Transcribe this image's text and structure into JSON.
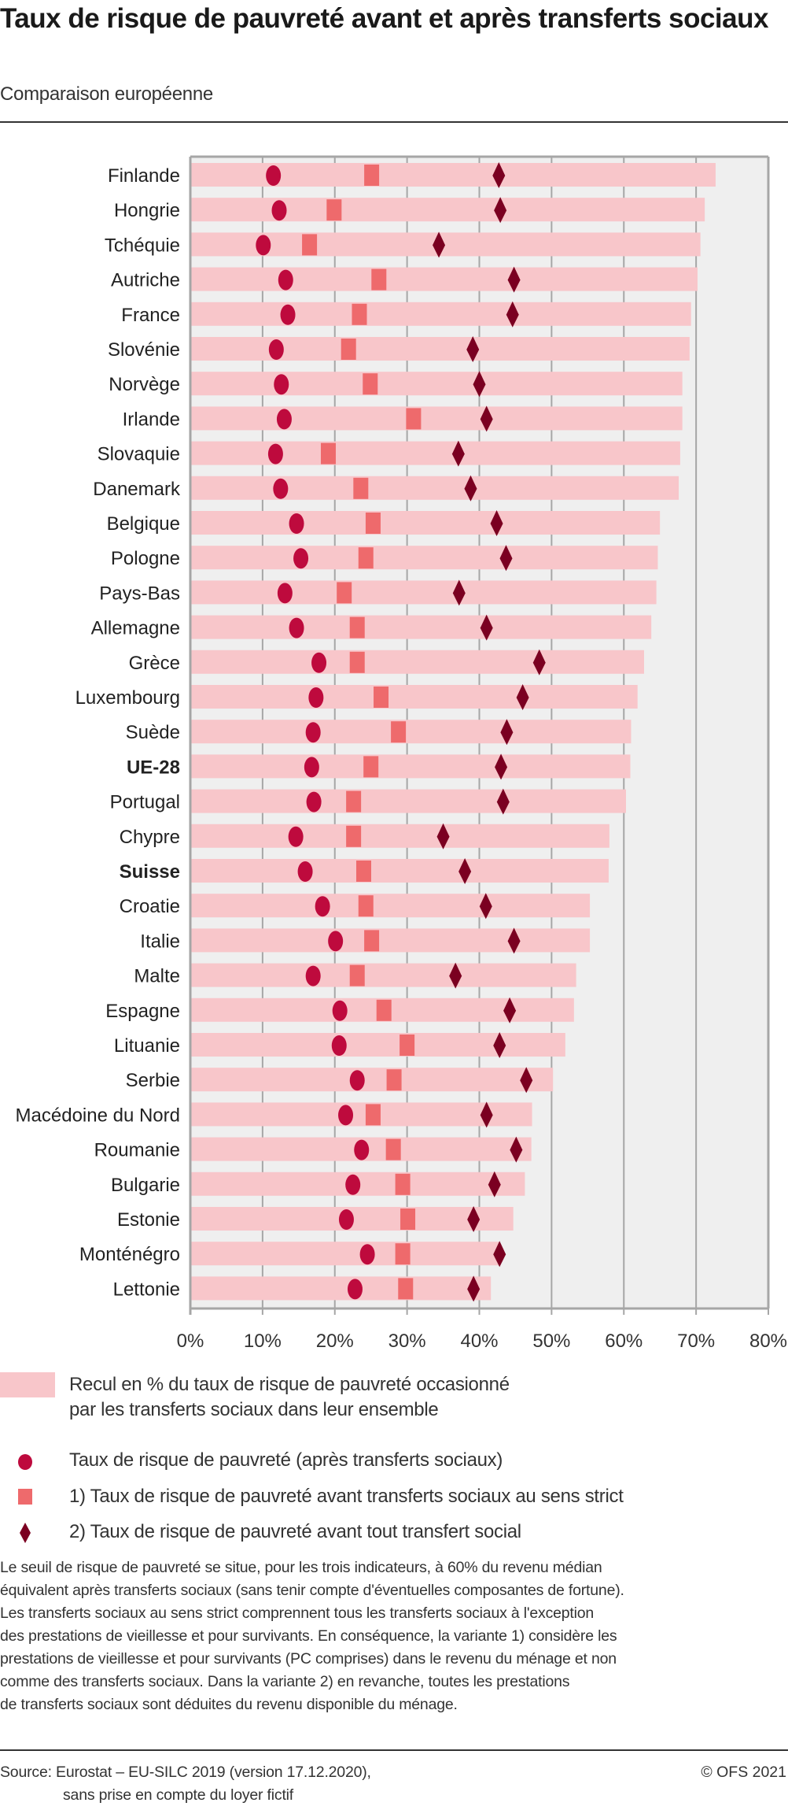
{
  "header": {
    "title": "Taux de risque de pauvreté avant et après transferts sociaux",
    "subtitle": "Comparaison européenne"
  },
  "colors": {
    "bar": "#f8c6ca",
    "circle": "#be0a3d",
    "square": "#ee6a6c",
    "diamond": "#7b0021",
    "plot_background": "#efefef",
    "grid": "#a6a6a6"
  },
  "chart_data": {
    "type": "bar",
    "orientation": "horizontal",
    "title": "Taux de risque de pauvreté avant et après transferts sociaux",
    "subtitle": "Comparaison européenne",
    "xlabel": "",
    "ylabel": "",
    "xlim": [
      0,
      80
    ],
    "xticks": [
      0,
      10,
      20,
      30,
      40,
      50,
      60,
      70,
      80
    ],
    "xtick_labels": [
      "0%",
      "10%",
      "20%",
      "30%",
      "40%",
      "50%",
      "60%",
      "70%",
      "80%"
    ],
    "grid": true,
    "legend_position": "bottom",
    "categories": [
      "Finlande",
      "Hongrie",
      "Tchéquie",
      "Autriche",
      "France",
      "Slovénie",
      "Norvège",
      "Irlande",
      "Slovaquie",
      "Danemark",
      "Belgique",
      "Pologne",
      "Pays-Bas",
      "Allemagne",
      "Grèce",
      "Luxembourg",
      "Suède",
      "UE-28",
      "Portugal",
      "Chypre",
      "Suisse",
      "Croatie",
      "Italie",
      "Malte",
      "Espagne",
      "Lituanie",
      "Serbie",
      "Macédoine du Nord",
      "Roumanie",
      "Bulgarie",
      "Estonie",
      "Monténégro",
      "Lettonie"
    ],
    "bold_categories": [
      "UE-28",
      "Suisse"
    ],
    "series": [
      {
        "name": "Recul en % du taux de risque de pauvreté occasionné par les transferts sociaux dans leur ensemble",
        "marker": "bar",
        "values": [
          72.7,
          71.2,
          70.6,
          70.2,
          69.3,
          69.1,
          68.1,
          68.1,
          67.8,
          67.6,
          65.0,
          64.7,
          64.5,
          63.8,
          62.8,
          61.9,
          61.0,
          60.9,
          60.3,
          58.0,
          57.9,
          55.3,
          55.3,
          53.4,
          53.1,
          51.9,
          50.2,
          47.3,
          47.2,
          46.3,
          44.7,
          42.7,
          41.6
        ]
      },
      {
        "name": "Taux de risque de pauvreté (après transferts sociaux)",
        "marker": "circle",
        "values": [
          11.5,
          12.3,
          10.1,
          13.2,
          13.5,
          11.9,
          12.6,
          13.0,
          11.8,
          12.5,
          14.7,
          15.3,
          13.1,
          14.7,
          17.8,
          17.4,
          17.0,
          16.8,
          17.1,
          14.6,
          15.9,
          18.3,
          20.1,
          17.0,
          20.7,
          20.6,
          23.1,
          21.5,
          23.7,
          22.5,
          21.6,
          24.5,
          22.8
        ]
      },
      {
        "name": "1) Taux de risque de pauvreté avant transferts sociaux au sens strict",
        "marker": "square",
        "values": [
          25.1,
          19.9,
          16.5,
          26.1,
          23.4,
          21.9,
          24.9,
          30.9,
          19.1,
          23.6,
          25.3,
          24.3,
          21.3,
          23.1,
          23.1,
          26.4,
          28.8,
          25.0,
          22.6,
          22.6,
          24.0,
          24.3,
          25.1,
          23.1,
          26.8,
          30.0,
          28.2,
          25.3,
          28.1,
          29.4,
          30.1,
          29.4,
          29.8
        ]
      },
      {
        "name": "2) Taux de risque de pauvreté avant tout transfert social",
        "marker": "diamond",
        "values": [
          42.7,
          42.9,
          34.4,
          44.8,
          44.6,
          39.1,
          40.0,
          41.0,
          37.1,
          38.8,
          42.4,
          43.7,
          37.2,
          41.0,
          48.3,
          46.0,
          43.8,
          43.0,
          43.3,
          35.0,
          38.0,
          40.9,
          44.8,
          36.7,
          44.2,
          42.8,
          46.5,
          41.0,
          45.1,
          42.1,
          39.2,
          42.8,
          39.2
        ]
      }
    ]
  },
  "legend": {
    "items": [
      {
        "marker": "bar",
        "label_line1": "Recul en % du taux de risque de pauvreté occasionné",
        "label_line2": "par les transferts sociaux dans leur ensemble"
      },
      {
        "marker": "circle",
        "label_line1": "Taux de risque de pauvreté (après transferts sociaux)"
      },
      {
        "marker": "square",
        "label_line1": "1) Taux de risque de pauvreté avant transferts sociaux au sens strict"
      },
      {
        "marker": "diamond",
        "label_line1": "2) Taux de risque de pauvreté avant tout transfert social"
      }
    ]
  },
  "notes": {
    "lines": [
      "Le seuil de risque de pauvreté se situe, pour les trois indicateurs, à 60% du revenu médian",
      "équivalent après transferts sociaux (sans tenir compte d'éventuelles composantes de fortune).",
      "Les transferts sociaux au sens strict comprennent tous les transferts sociaux à l'exception",
      "des prestations de vieillesse et pour survivants. En conséquence, la variante 1) considère les",
      "prestations de vieillesse et pour survivants (PC comprises) dans le revenu du ménage et non",
      "comme des transferts sociaux. Dans la variante 2) en revanche, toutes les prestations",
      "de transferts sociaux sont déduites du revenu disponible du ménage."
    ]
  },
  "footer": {
    "source_line1": "Source: Eurostat – EU-SILC 2019 (version 17.12.2020),",
    "source_line2": "sans prise en compte du loyer fictif",
    "copyright": "© OFS 2021"
  }
}
